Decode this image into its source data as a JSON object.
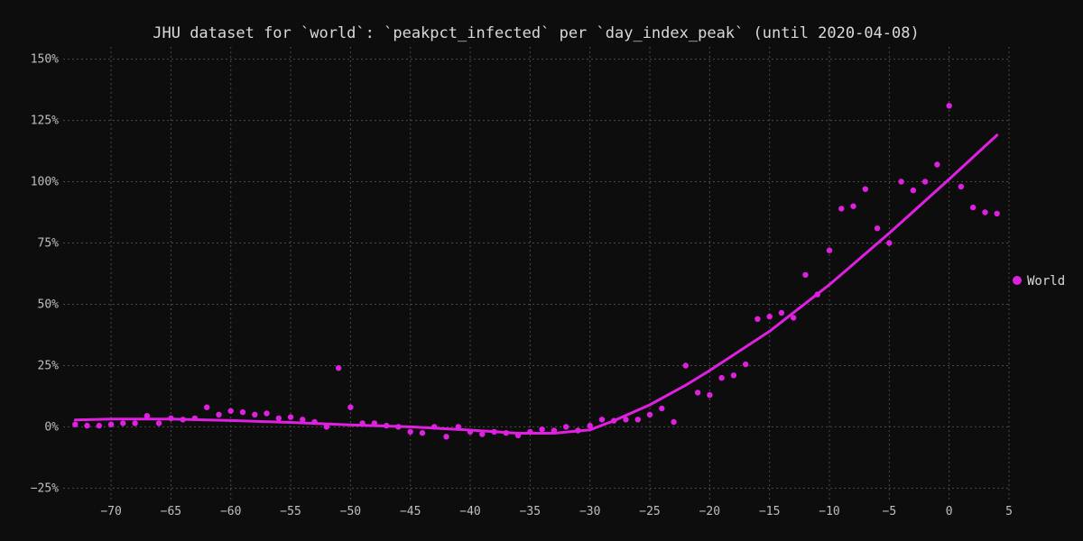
{
  "chart_data": {
    "type": "scatter",
    "title": "JHU dataset for `world`: `peakpct_infected` per `day_index_peak` (until 2020-04-08)",
    "xlabel": "",
    "ylabel": "",
    "xlim": [
      -74,
      5
    ],
    "ylim": [
      -30,
      155
    ],
    "x_ticks": [
      -70,
      -65,
      -60,
      -55,
      -50,
      -45,
      -40,
      -35,
      -30,
      -25,
      -20,
      -15,
      -10,
      -5,
      0,
      5
    ],
    "y_ticks": [
      -25,
      0,
      25,
      50,
      75,
      100,
      125,
      150
    ],
    "y_tick_suffix": "%",
    "grid": true,
    "legend_position": "right",
    "background": "#0d0d0d",
    "series": [
      {
        "name": "World",
        "color": "#e020e0",
        "points": [
          [
            -73,
            1
          ],
          [
            -72,
            0.5
          ],
          [
            -71,
            0.5
          ],
          [
            -70,
            1
          ],
          [
            -69,
            1.5
          ],
          [
            -68,
            1.5
          ],
          [
            -67,
            4.5
          ],
          [
            -66,
            1.5
          ],
          [
            -65,
            3.5
          ],
          [
            -64,
            3
          ],
          [
            -63,
            3.5
          ],
          [
            -62,
            8
          ],
          [
            -61,
            5
          ],
          [
            -60,
            6.5
          ],
          [
            -59,
            6
          ],
          [
            -58,
            5
          ],
          [
            -57,
            5.5
          ],
          [
            -56,
            3.5
          ],
          [
            -55,
            4
          ],
          [
            -54,
            3
          ],
          [
            -53,
            2
          ],
          [
            -52,
            0
          ],
          [
            -51,
            24
          ],
          [
            -50,
            8
          ],
          [
            -49,
            1.5
          ],
          [
            -48,
            1.5
          ],
          [
            -47,
            0.5
          ],
          [
            -46,
            0
          ],
          [
            -45,
            -2
          ],
          [
            -44,
            -2.5
          ],
          [
            -43,
            0
          ],
          [
            -42,
            -4
          ],
          [
            -41,
            0
          ],
          [
            -40,
            -2
          ],
          [
            -39,
            -3
          ],
          [
            -38,
            -2
          ],
          [
            -37,
            -2.5
          ],
          [
            -36,
            -3.5
          ],
          [
            -35,
            -2
          ],
          [
            -34,
            -1
          ],
          [
            -33,
            -1.5
          ],
          [
            -32,
            0
          ],
          [
            -31,
            -1.5
          ],
          [
            -30,
            0.5
          ],
          [
            -29,
            3
          ],
          [
            -28,
            2.5
          ],
          [
            -27,
            3
          ],
          [
            -26,
            3
          ],
          [
            -25,
            5
          ],
          [
            -24,
            7.5
          ],
          [
            -23,
            2
          ],
          [
            -22,
            25
          ],
          [
            -21,
            14
          ],
          [
            -20,
            13
          ],
          [
            -19,
            20
          ],
          [
            -18,
            21
          ],
          [
            -17,
            25.5
          ],
          [
            -16,
            44
          ],
          [
            -15,
            45
          ],
          [
            -14,
            46.5
          ],
          [
            -13,
            44.5
          ],
          [
            -12,
            62
          ],
          [
            -11,
            54
          ],
          [
            -10,
            72
          ],
          [
            -9,
            89
          ],
          [
            -8,
            90
          ],
          [
            -7,
            97
          ],
          [
            -6,
            81
          ],
          [
            -5,
            75
          ],
          [
            -4,
            100
          ],
          [
            -3,
            96.5
          ],
          [
            -2,
            100
          ],
          [
            -1,
            107
          ],
          [
            0,
            131
          ],
          [
            1,
            98
          ],
          [
            2,
            89.5
          ],
          [
            3,
            87.5
          ],
          [
            4,
            87
          ]
        ],
        "fit_line": [
          [
            -73,
            2.8
          ],
          [
            -70,
            3.2
          ],
          [
            -65,
            3.2
          ],
          [
            -60,
            2.6
          ],
          [
            -55,
            1.8
          ],
          [
            -50,
            0.8
          ],
          [
            -45,
            0
          ],
          [
            -40,
            -1.3
          ],
          [
            -36,
            -2.6
          ],
          [
            -33,
            -2.6
          ],
          [
            -30,
            -1.2
          ],
          [
            -28,
            2.5
          ],
          [
            -25,
            9
          ],
          [
            -22,
            17
          ],
          [
            -20,
            23
          ],
          [
            -15,
            39
          ],
          [
            -10,
            58
          ],
          [
            -5,
            79
          ],
          [
            0,
            101
          ],
          [
            4,
            119
          ]
        ]
      }
    ]
  }
}
